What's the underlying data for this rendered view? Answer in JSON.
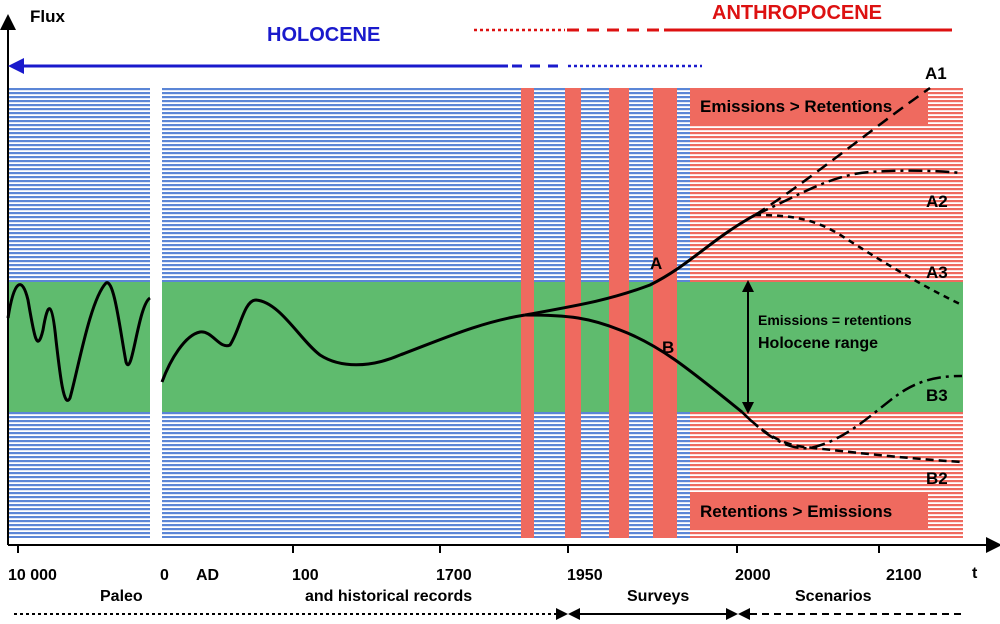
{
  "axis": {
    "y_label": "Flux",
    "x_label": "t"
  },
  "periods": {
    "holocene": "HOLOCENE",
    "anthropocene": "ANTHROPOCENE"
  },
  "time_ticks": [
    "10 000",
    "0",
    "AD",
    "100",
    "1700",
    "1950",
    "2000",
    "2100"
  ],
  "phases": [
    "Paleo",
    "and historical records",
    "Surveys",
    "Scenarios"
  ],
  "zones": {
    "upper": "Emissions > Retentions",
    "lower": "Retentions > Emissions",
    "balance": "Emissions = retentions",
    "range": "Holocene range"
  },
  "curve_labels": [
    "A",
    "B",
    "A1",
    "A2",
    "A3",
    "B2",
    "B3"
  ],
  "colors": {
    "blue_stripes": "#5b86d6",
    "red_stripes": "#ef6a5f",
    "green_band": "#5fbb6e",
    "holocene": "#1a1acc",
    "anthropocene": "#dd1111"
  }
}
